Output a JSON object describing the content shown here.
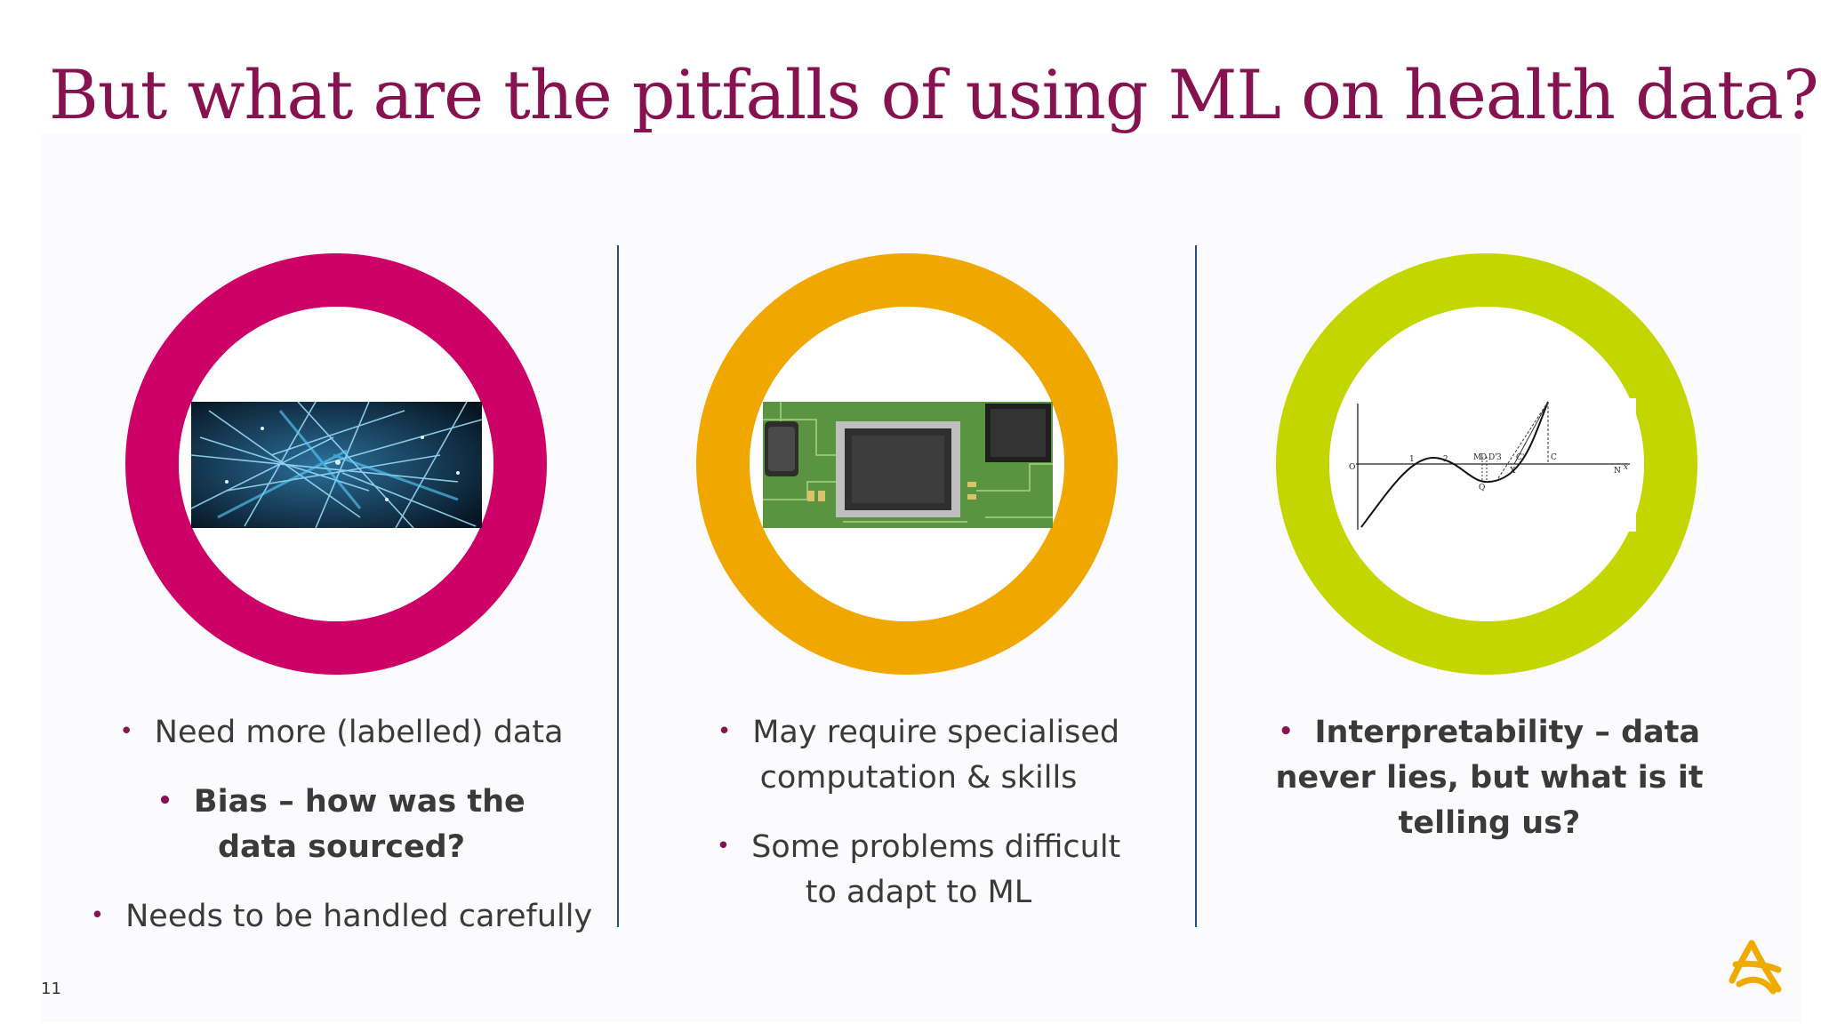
{
  "slide": {
    "title": "But what are the pitfalls of using ML on health data?",
    "page_number": "11"
  },
  "columns": [
    {
      "ring_color": "#cc0066",
      "image": "abstract-blue-light-network-image",
      "bullets": [
        {
          "text": "Need more (labelled) data",
          "bold": false
        },
        {
          "text": "Bias – how was the data sourced?",
          "bold": true
        },
        {
          "text": "Needs to be handled carefully",
          "bold": false
        }
      ]
    },
    {
      "ring_color": "#f0a800",
      "image": "circuit-board-chip-image",
      "bullets": [
        {
          "text": "May require specialised computation & skills",
          "bold": false
        },
        {
          "text": "Some problems difficult to adapt to ML",
          "bold": false
        }
      ]
    },
    {
      "ring_color": "#c4d600",
      "image": "cubic-curve-graph-image",
      "graph_labels": [
        "O",
        "1",
        "2",
        "M",
        "D",
        "D'",
        "3",
        "C'",
        "C",
        "Q",
        "X",
        "N",
        "x"
      ],
      "bullets": [
        {
          "text": "Interpretability – data never lies, but what is it telling us?",
          "bold": true
        }
      ]
    }
  ],
  "colors": {
    "title": "#86124f",
    "bullet_dot": "#86124f",
    "divider": "#2e4d78",
    "logo": "#f0ab00"
  },
  "logo": "brand-logo-icon"
}
